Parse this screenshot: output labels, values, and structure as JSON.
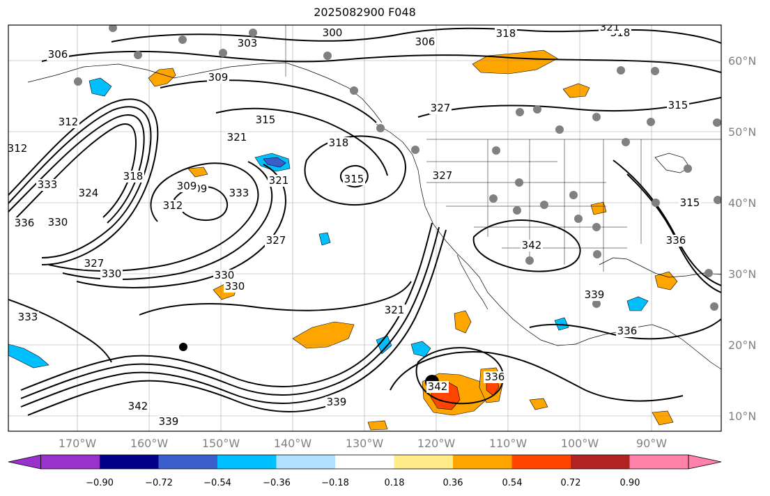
{
  "title": "2025082900 F048",
  "latitude_labels": [
    "60°N",
    "50°N",
    "40°N",
    "30°N",
    "20°N",
    "10°N"
  ],
  "longitude_labels": [
    "170°W",
    "160°W",
    "150°W",
    "140°W",
    "130°W",
    "120°W",
    "110°W",
    "100°W",
    "90°W"
  ],
  "colorbar": {
    "tick_labels": [
      "−0.90",
      "−0.72",
      "−0.54",
      "−0.36",
      "−0.18",
      "0.18",
      "0.36",
      "0.54",
      "0.72",
      "0.90"
    ],
    "colors": [
      "#9932CC",
      "#00008B",
      "#3A5FCD",
      "#00BFFF",
      "#B0E2FF",
      "#FFFFFF",
      "#FFEC8B",
      "#FFA500",
      "#FF4500",
      "#B22222",
      "#FF82AB"
    ]
  },
  "contour_labels": [
    "300",
    "303",
    "306",
    "306",
    "309",
    "309",
    "309",
    "312",
    "312",
    "312",
    "315",
    "315",
    "315",
    "315",
    "318",
    "318",
    "318",
    "318",
    "321",
    "321",
    "321",
    "321",
    "324",
    "327",
    "327",
    "327",
    "327",
    "330",
    "330",
    "330",
    "330",
    "333",
    "333",
    "333",
    "336",
    "336",
    "336",
    "336",
    "339",
    "339",
    "339",
    "342",
    "342",
    "342"
  ],
  "colors": {
    "land_outline": "#000000",
    "grid": "#808080",
    "station": "#808080",
    "storm": "#000000",
    "positive": "#FFA500",
    "strong_positive": "#FF4500",
    "negative": "#00BFFF",
    "strong_negative": "#3A5FCD"
  }
}
